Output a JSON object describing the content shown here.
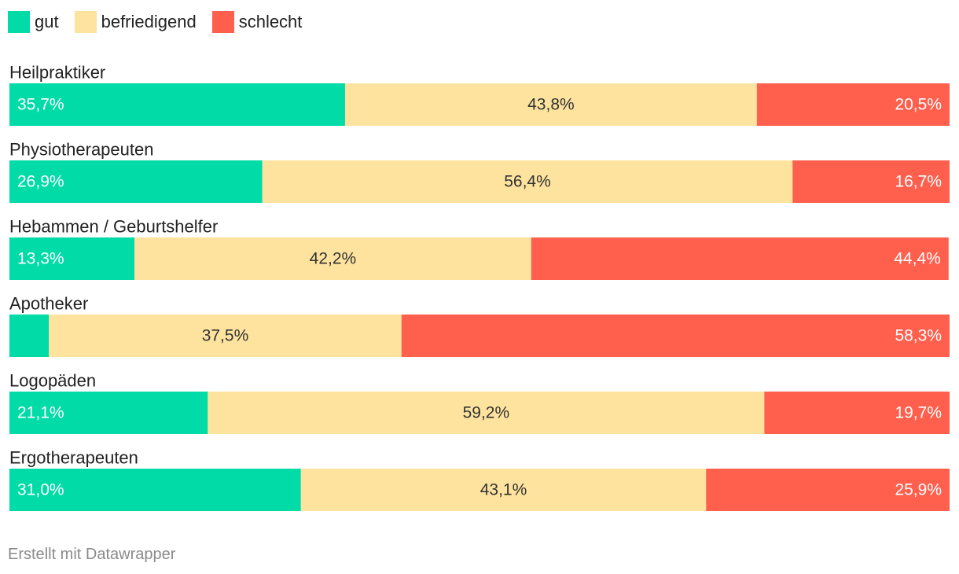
{
  "chart_data": {
    "type": "bar",
    "orientation": "horizontal",
    "stacked": true,
    "categories": [
      "Heilpraktiker",
      "Physiotherapeuten",
      "Hebammen / Geburtshelfer",
      "Apotheker",
      "Logopäden",
      "Ergotherapeuten"
    ],
    "series": [
      {
        "name": "gut",
        "color": "#00dba7",
        "values": [
          35.7,
          26.9,
          13.3,
          4.2,
          21.1,
          31.0
        ],
        "labels": [
          "35,7%",
          "26,9%",
          "13,3%",
          "",
          "21,1%",
          "31,0%"
        ]
      },
      {
        "name": "befriedigend",
        "color": "#fde39e",
        "values": [
          43.8,
          56.4,
          42.2,
          37.5,
          59.2,
          43.1
        ],
        "labels": [
          "43,8%",
          "56,4%",
          "42,2%",
          "37,5%",
          "59,2%",
          "43,1%"
        ]
      },
      {
        "name": "schlecht",
        "color": "#ff5f4d",
        "values": [
          20.5,
          16.7,
          44.4,
          58.3,
          19.7,
          25.9
        ],
        "labels": [
          "20,5%",
          "16,7%",
          "44,4%",
          "58,3%",
          "19,7%",
          "25,9%"
        ]
      }
    ],
    "xlim": [
      0,
      100
    ],
    "legend_position": "top-left",
    "title": "",
    "xlabel": "",
    "ylabel": ""
  },
  "footer": {
    "credit": "Erstellt mit Datawrapper"
  }
}
